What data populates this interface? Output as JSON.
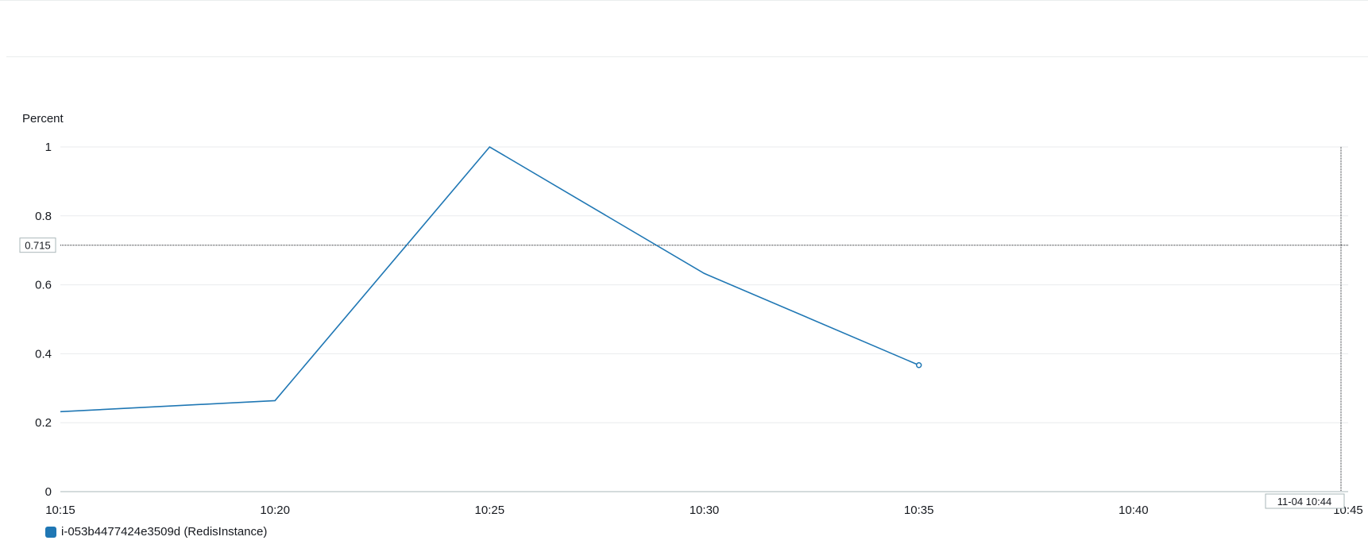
{
  "chart_data": {
    "type": "line",
    "y_unit_label": "Percent",
    "x": [
      "10:15",
      "10:20",
      "10:25",
      "10:30",
      "10:35"
    ],
    "x_tick_labels": [
      "10:15",
      "10:20",
      "10:25",
      "10:30",
      "10:35",
      "10:40",
      "10:45"
    ],
    "y_tick_labels": [
      "0",
      "0.2",
      "0.4",
      "0.6",
      "0.8",
      "1"
    ],
    "ylim": [
      0,
      1
    ],
    "grid": true,
    "series": [
      {
        "name": "i-053b4477424e3509d (RedisInstance)",
        "color": "#1f77b4",
        "values": [
          0.232,
          0.264,
          1.0,
          0.633,
          0.367
        ]
      }
    ],
    "crosshair": {
      "y_value_label": "0.715",
      "y_value": 0.715,
      "x_time_label": "11-04 10:44"
    },
    "legend_placement": "bottom-left"
  }
}
